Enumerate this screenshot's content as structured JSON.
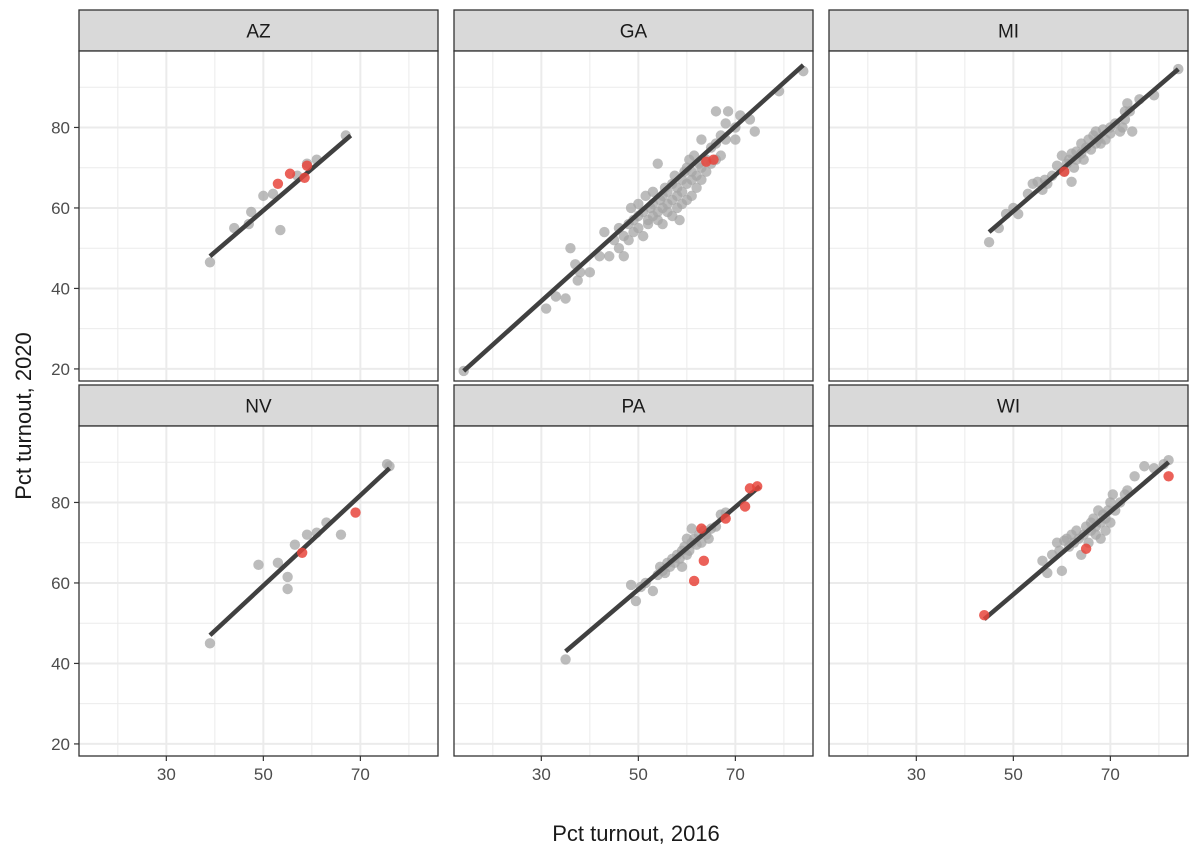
{
  "chart_data": {
    "type": "scatter",
    "xlabel": "Pct turnout, 2016",
    "ylabel": "Pct turnout, 2020",
    "xlim": [
      12,
      86
    ],
    "ylim": [
      17,
      99
    ],
    "x_ticks": [
      30,
      50,
      70
    ],
    "y_ticks": [
      20,
      40,
      60,
      80
    ],
    "x_minor_gridlines": [
      20,
      40,
      60,
      80
    ],
    "y_minor_gridlines": [
      30,
      50,
      70,
      90
    ],
    "grid": true,
    "colors": {
      "gray_point": "#a6a6a6",
      "red_point": "#e8453c",
      "fit_line": "#404040",
      "strip": "#d9d9d9",
      "grid": "#ebebeb"
    },
    "panels": [
      {
        "label": "AZ",
        "fit": [
          [
            39,
            48
          ],
          [
            68,
            78
          ]
        ],
        "gray_points": [
          [
            39,
            46.5
          ],
          [
            44,
            55
          ],
          [
            47,
            56
          ],
          [
            47.5,
            59
          ],
          [
            50,
            63
          ],
          [
            52,
            63.5
          ],
          [
            53.5,
            54.5
          ],
          [
            57,
            68
          ],
          [
            59,
            71
          ],
          [
            61,
            72
          ],
          [
            67,
            78
          ]
        ],
        "red_points": [
          [
            53,
            66
          ],
          [
            55.5,
            68.5
          ],
          [
            58.5,
            67.5
          ],
          [
            59,
            70.5
          ]
        ]
      },
      {
        "label": "GA",
        "fit": [
          [
            14,
            19.5
          ],
          [
            84,
            95.5
          ]
        ],
        "gray_points": [
          [
            14,
            19.5
          ],
          [
            31,
            35
          ],
          [
            33,
            38
          ],
          [
            35,
            37.5
          ],
          [
            36,
            50
          ],
          [
            37,
            46
          ],
          [
            37.5,
            42
          ],
          [
            38,
            44
          ],
          [
            40,
            44
          ],
          [
            42,
            48
          ],
          [
            43,
            54
          ],
          [
            44,
            48
          ],
          [
            45,
            52
          ],
          [
            46,
            55
          ],
          [
            46,
            50
          ],
          [
            47,
            53
          ],
          [
            47,
            48
          ],
          [
            48,
            56
          ],
          [
            48,
            52
          ],
          [
            48.5,
            60
          ],
          [
            49,
            54
          ],
          [
            49,
            57
          ],
          [
            50,
            55
          ],
          [
            50,
            58
          ],
          [
            50,
            61
          ],
          [
            51,
            53
          ],
          [
            51,
            59
          ],
          [
            51.5,
            63
          ],
          [
            52,
            56
          ],
          [
            52,
            57
          ],
          [
            52.5,
            60
          ],
          [
            53,
            58
          ],
          [
            53,
            61
          ],
          [
            53,
            64
          ],
          [
            54,
            57
          ],
          [
            54,
            59
          ],
          [
            54.5,
            62
          ],
          [
            54,
            71
          ],
          [
            55,
            56
          ],
          [
            55,
            60
          ],
          [
            55,
            63
          ],
          [
            55.5,
            65
          ],
          [
            56,
            59
          ],
          [
            56,
            61
          ],
          [
            56,
            64
          ],
          [
            57,
            58
          ],
          [
            57,
            62
          ],
          [
            57,
            66
          ],
          [
            57.5,
            68
          ],
          [
            58,
            60
          ],
          [
            58,
            63
          ],
          [
            58,
            65
          ],
          [
            58.5,
            57
          ],
          [
            59,
            61
          ],
          [
            59,
            64
          ],
          [
            59,
            67
          ],
          [
            59.5,
            69
          ],
          [
            60,
            62
          ],
          [
            60,
            66
          ],
          [
            60,
            70
          ],
          [
            60.5,
            72
          ],
          [
            61,
            63
          ],
          [
            61,
            67
          ],
          [
            61,
            69
          ],
          [
            61.5,
            73
          ],
          [
            62,
            65
          ],
          [
            62,
            68
          ],
          [
            62.5,
            71
          ],
          [
            63,
            67
          ],
          [
            63,
            70
          ],
          [
            63,
            77
          ],
          [
            64,
            69
          ],
          [
            64,
            72
          ],
          [
            65,
            71
          ],
          [
            65,
            75
          ],
          [
            66,
            72
          ],
          [
            66,
            76
          ],
          [
            66,
            84
          ],
          [
            67,
            73
          ],
          [
            67,
            78
          ],
          [
            68,
            77
          ],
          [
            68,
            81
          ],
          [
            68.5,
            84
          ],
          [
            70,
            80
          ],
          [
            70,
            77
          ],
          [
            71,
            83
          ],
          [
            73,
            82
          ],
          [
            74,
            79
          ],
          [
            79,
            89
          ],
          [
            84,
            94
          ]
        ],
        "red_points": [
          [
            64,
            71.5
          ],
          [
            65.5,
            72
          ]
        ]
      },
      {
        "label": "MI",
        "fit": [
          [
            45,
            54
          ],
          [
            84,
            94.5
          ]
        ],
        "gray_points": [
          [
            45,
            51.5
          ],
          [
            47,
            55
          ],
          [
            48.5,
            58.5
          ],
          [
            50,
            60
          ],
          [
            51,
            58.5
          ],
          [
            53,
            63.5
          ],
          [
            54,
            66
          ],
          [
            55,
            66.5
          ],
          [
            56,
            64.5
          ],
          [
            56.5,
            67
          ],
          [
            57,
            66
          ],
          [
            58,
            68
          ],
          [
            59,
            70.5
          ],
          [
            60,
            73
          ],
          [
            60.5,
            69
          ],
          [
            61,
            71
          ],
          [
            61.5,
            72
          ],
          [
            62,
            66.5
          ],
          [
            62,
            73.5
          ],
          [
            62.5,
            70
          ],
          [
            63,
            74
          ],
          [
            63,
            72
          ],
          [
            64,
            76
          ],
          [
            64,
            73.5
          ],
          [
            64.5,
            72
          ],
          [
            65,
            75
          ],
          [
            65.5,
            77
          ],
          [
            66,
            74.5
          ],
          [
            66.5,
            78
          ],
          [
            67,
            76
          ],
          [
            67,
            79
          ],
          [
            67.5,
            77
          ],
          [
            68,
            76
          ],
          [
            68.5,
            79.5
          ],
          [
            69,
            77
          ],
          [
            70,
            80
          ],
          [
            70,
            78.5
          ],
          [
            71,
            81
          ],
          [
            72,
            79
          ],
          [
            72.5,
            80
          ],
          [
            73,
            84
          ],
          [
            73,
            82
          ],
          [
            73.5,
            86
          ],
          [
            74,
            84
          ],
          [
            74.5,
            79
          ],
          [
            76,
            87
          ],
          [
            79,
            88
          ],
          [
            84,
            94.5
          ]
        ],
        "red_points": [
          [
            60.5,
            69
          ]
        ]
      },
      {
        "label": "NV",
        "fit": [
          [
            39,
            47
          ],
          [
            76,
            88.5
          ]
        ],
        "gray_points": [
          [
            39,
            45
          ],
          [
            49,
            64.5
          ],
          [
            53,
            65
          ],
          [
            55,
            61.5
          ],
          [
            55,
            58.5
          ],
          [
            56.5,
            69.5
          ],
          [
            59,
            72
          ],
          [
            61,
            72.5
          ],
          [
            63,
            75
          ],
          [
            66,
            72
          ],
          [
            75.5,
            89.5
          ],
          [
            76,
            89
          ]
        ],
        "red_points": [
          [
            58,
            67.5
          ],
          [
            69,
            77.5
          ]
        ]
      },
      {
        "label": "PA",
        "fit": [
          [
            35,
            43
          ],
          [
            75,
            84
          ]
        ],
        "gray_points": [
          [
            35,
            41
          ],
          [
            48.5,
            59.5
          ],
          [
            49.5,
            55.5
          ],
          [
            50.5,
            59
          ],
          [
            51.5,
            60
          ],
          [
            53,
            58
          ],
          [
            54,
            62
          ],
          [
            54.5,
            64
          ],
          [
            55,
            63
          ],
          [
            55.5,
            62.5
          ],
          [
            56,
            65
          ],
          [
            56.5,
            64
          ],
          [
            57,
            66
          ],
          [
            57.5,
            65
          ],
          [
            58,
            67
          ],
          [
            58.5,
            66
          ],
          [
            59,
            68
          ],
          [
            59,
            64
          ],
          [
            59.5,
            69
          ],
          [
            60,
            67
          ],
          [
            60,
            71
          ],
          [
            60.5,
            68
          ],
          [
            61,
            70
          ],
          [
            61,
            73.5
          ],
          [
            61.5,
            71
          ],
          [
            62,
            69.5
          ],
          [
            62.5,
            72
          ],
          [
            63,
            70
          ],
          [
            63.5,
            73
          ],
          [
            64,
            72
          ],
          [
            64.5,
            71
          ],
          [
            65,
            73.5
          ],
          [
            66,
            74
          ],
          [
            67,
            77
          ],
          [
            68,
            77.5
          ]
        ],
        "red_points": [
          [
            61.5,
            60.5
          ],
          [
            63,
            73.5
          ],
          [
            63.5,
            65.5
          ],
          [
            68,
            76
          ],
          [
            72,
            79
          ],
          [
            73,
            83.5
          ],
          [
            74.5,
            84
          ]
        ]
      },
      {
        "label": "WI",
        "fit": [
          [
            44,
            51
          ],
          [
            82,
            90
          ]
        ],
        "gray_points": [
          [
            56,
            65.5
          ],
          [
            57,
            62.5
          ],
          [
            58,
            67
          ],
          [
            59,
            70
          ],
          [
            59.5,
            68
          ],
          [
            60,
            63
          ],
          [
            60.5,
            70.5
          ],
          [
            61,
            71
          ],
          [
            61.5,
            69
          ],
          [
            62,
            72
          ],
          [
            62.5,
            70
          ],
          [
            63,
            73
          ],
          [
            63.5,
            71
          ],
          [
            64,
            67
          ],
          [
            64.5,
            72
          ],
          [
            65,
            74
          ],
          [
            65.5,
            70
          ],
          [
            66,
            75
          ],
          [
            66,
            73
          ],
          [
            66.5,
            76
          ],
          [
            67,
            72
          ],
          [
            67,
            74
          ],
          [
            67.5,
            78
          ],
          [
            68,
            71
          ],
          [
            68,
            75
          ],
          [
            68.5,
            77
          ],
          [
            69,
            73
          ],
          [
            69,
            76
          ],
          [
            69.5,
            78
          ],
          [
            70,
            80
          ],
          [
            70,
            75
          ],
          [
            70.5,
            82
          ],
          [
            71,
            78
          ],
          [
            72,
            80
          ],
          [
            73,
            82
          ],
          [
            73.5,
            83
          ],
          [
            75,
            86.5
          ],
          [
            77,
            89
          ],
          [
            79,
            88.5
          ],
          [
            81,
            89.5
          ],
          [
            82,
            90.5
          ]
        ],
        "red_points": [
          [
            44,
            52
          ],
          [
            65,
            68.5
          ],
          [
            82,
            86.5
          ]
        ]
      }
    ]
  }
}
